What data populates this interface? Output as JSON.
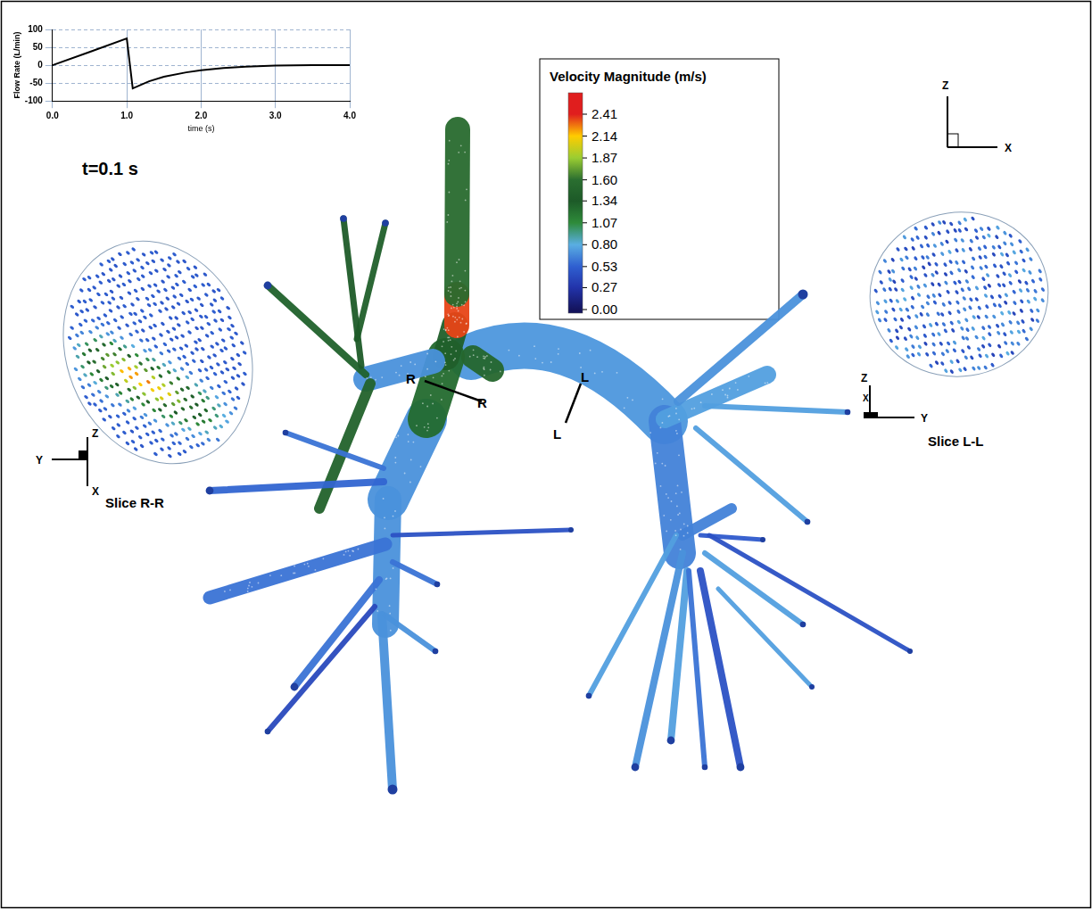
{
  "time_label": "t=0.1 s",
  "chart_data": {
    "type": "line",
    "x_label": "time (s)",
    "y_label": "Flow Rate (L/min)",
    "x": [
      0,
      0.5,
      1.0,
      1.08,
      1.3,
      1.5,
      1.8,
      2.0,
      2.3,
      2.6,
      3.0,
      3.5,
      4.0
    ],
    "values": [
      0,
      37,
      75,
      -65,
      -45,
      -32,
      -20,
      -14,
      -8,
      -4,
      -1,
      0,
      0
    ],
    "color": "#000000",
    "xlim": [
      0,
      4
    ],
    "ylim": [
      -100,
      100
    ],
    "xticks": [
      {
        "value": 0,
        "label": "0.0"
      },
      {
        "value": 1,
        "label": "1.0"
      },
      {
        "value": 2,
        "label": "2.0"
      },
      {
        "value": 3,
        "label": "3.0"
      },
      {
        "value": 4,
        "label": "4.0"
      }
    ],
    "yticks": [
      -100,
      -50,
      0,
      50,
      100
    ],
    "grid": true,
    "line_style": "solid",
    "marker": "none"
  },
  "colorbar": {
    "title": "Velocity Magnitude (m/s)",
    "ticks": [
      {
        "value": 0,
        "label": "0.00"
      },
      0.27,
      0.53,
      {
        "value": 0.8,
        "label": "0.80"
      },
      1.07,
      1.34,
      {
        "value": 1.6,
        "label": "1.60"
      },
      1.87,
      2.14,
      2.41
    ],
    "colors": [
      "#14145e",
      "#2233aa",
      "#2f5fd0",
      "#5aaee2",
      "#2e8b3a",
      "#1d5a28",
      "#2a6e30",
      "#9acd32",
      "#ffcc00",
      "#e01e1e"
    ]
  },
  "airway": {
    "branch_velocities": [
      1.55,
      2.35,
      1.4,
      1.25,
      0.7,
      1.5,
      0.7,
      1.3,
      1.35,
      1.4,
      1.45,
      0.55,
      0.6,
      0.7,
      0.6,
      0.45,
      0.6,
      0.6,
      0.4,
      0.7,
      0.7,
      0.72,
      0.75,
      0.75,
      0.7,
      0.75,
      0.65,
      0.75,
      0.6,
      0.45,
      0.75,
      0.45,
      0.5,
      0.75,
      0.7,
      0.65,
      0.75
    ]
  },
  "sections": [
    {
      "ends": [
        "R",
        "R"
      ]
    },
    {
      "ends": [
        "L",
        "L"
      ]
    }
  ],
  "slices": [
    {
      "title": "Slice R-R",
      "axes": [
        "Y",
        "Z",
        "X"
      ],
      "peak_velocity": 2.41
    },
    {
      "title": "Slice L-L",
      "axes": [
        "Z",
        "Y",
        "X"
      ],
      "peak_velocity": 0.8
    }
  ],
  "view_axes": [
    "Z",
    "X"
  ]
}
